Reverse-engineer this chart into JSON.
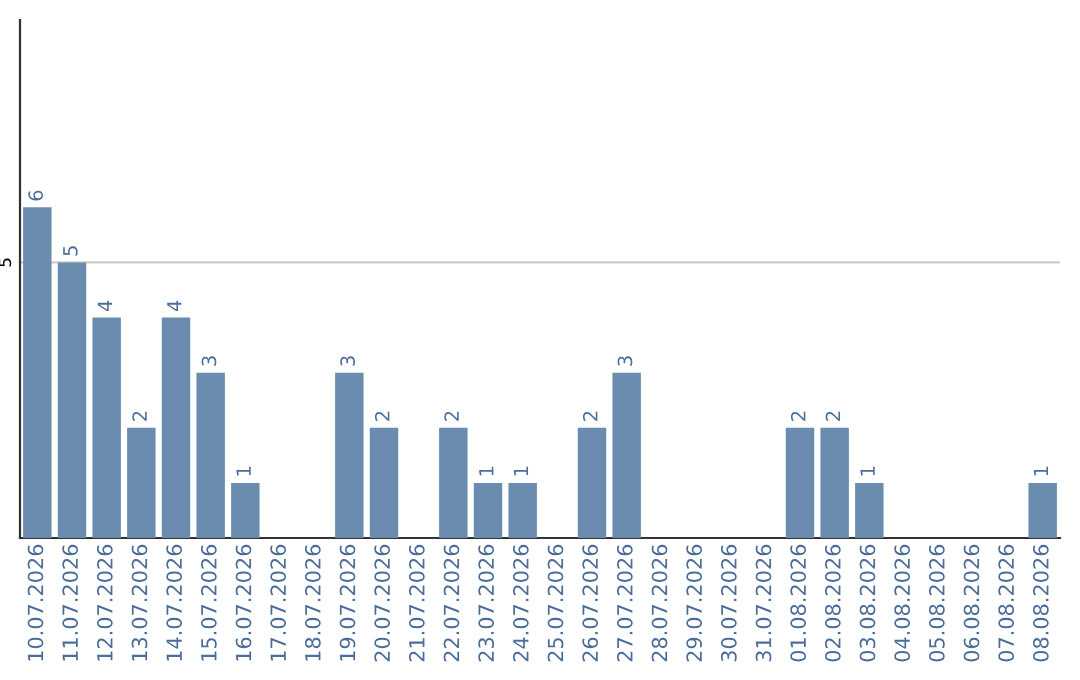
{
  "chart_data": {
    "type": "bar",
    "categories": [
      "10.07.2026",
      "11.07.2026",
      "12.07.2026",
      "13.07.2026",
      "14.07.2026",
      "15.07.2026",
      "16.07.2026",
      "17.07.2026",
      "18.07.2026",
      "19.07.2026",
      "20.07.2026",
      "21.07.2026",
      "22.07.2026",
      "23.07.2026",
      "24.07.2026",
      "25.07.2026",
      "26.07.2026",
      "27.07.2026",
      "28.07.2026",
      "29.07.2026",
      "30.07.2026",
      "31.07.2026",
      "01.08.2026",
      "02.08.2026",
      "03.08.2026",
      "04.08.2026",
      "05.08.2026",
      "06.08.2026",
      "07.08.2026",
      "08.08.2026"
    ],
    "values": [
      6,
      5,
      4,
      2,
      4,
      3,
      1,
      0,
      0,
      3,
      2,
      0,
      2,
      1,
      1,
      0,
      2,
      3,
      0,
      0,
      0,
      0,
      2,
      2,
      1,
      0,
      0,
      0,
      0,
      1
    ],
    "value_labels": [
      "6",
      "5",
      "4",
      "2",
      "4",
      "3",
      "1",
      null,
      null,
      "3",
      "2",
      null,
      "2",
      "1",
      "1",
      null,
      "2",
      "3",
      null,
      null,
      null,
      null,
      "2",
      "2",
      "1",
      null,
      null,
      null,
      null,
      "1"
    ],
    "color": "#6a8cae",
    "ylim": [
      0,
      9.4
    ],
    "yticks": [
      5
    ],
    "grid": "y"
  }
}
